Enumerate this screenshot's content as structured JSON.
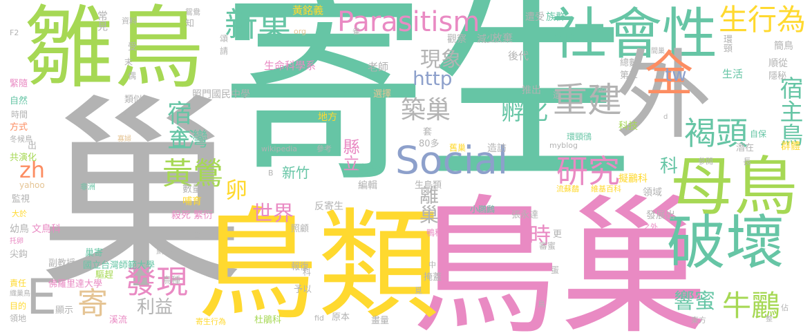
{
  "colors": {
    "green": "#66c5a5",
    "pink": "#e98ac3",
    "yellow": "#ffd92f",
    "lime": "#a6d854",
    "gray": "#b3b3b3",
    "orange": "#fc8d62",
    "blue": "#8da0cb",
    "tan": "#e5c494"
  },
  "words": [
    {
      "text": "寄生",
      "color": "green"
    },
    {
      "text": "巢",
      "color": "gray"
    },
    {
      "text": "鳥巢",
      "color": "pink"
    },
    {
      "text": "鳥類",
      "color": "yellow"
    },
    {
      "text": "雛鳥",
      "color": "lime"
    },
    {
      "text": "母鳥",
      "color": "lime"
    },
    {
      "text": "破壞",
      "color": "green"
    },
    {
      "text": "社會性",
      "color": "green"
    },
    {
      "text": "外",
      "color": "gray"
    },
    {
      "text": "全",
      "color": "orange"
    },
    {
      "text": "Parasitism",
      "color": "pink"
    },
    {
      "text": "Social",
      "color": "blue"
    },
    {
      "text": "新巢",
      "color": "green"
    },
    {
      "text": "生行為",
      "color": "yellow"
    },
    {
      "text": "重建",
      "color": "gray"
    },
    {
      "text": "褐頭",
      "color": "green"
    },
    {
      "text": "研究",
      "color": "pink"
    },
    {
      "text": "黃鶯",
      "color": "lime"
    },
    {
      "text": "發現",
      "color": "pink"
    },
    {
      "text": "宿主",
      "color": "green"
    },
    {
      "text": "台灣",
      "color": "green"
    },
    {
      "text": "孵化",
      "color": "green"
    },
    {
      "text": "築巢",
      "color": "gray"
    },
    {
      "text": "現象",
      "color": "gray"
    },
    {
      "text": "牛鸝",
      "color": "lime"
    },
    {
      "text": "寄",
      "color": "tan"
    },
    {
      "text": "E",
      "color": "gray"
    },
    {
      "text": "利益",
      "color": "gray"
    },
    {
      "text": "世界",
      "color": "pink"
    },
    {
      "text": "卵",
      "color": "yellow"
    },
    {
      "text": "時",
      "color": "pink"
    },
    {
      "text": "宿主鳥",
      "color": "green"
    },
    {
      "text": "響蜜",
      "color": "green"
    },
    {
      "text": "zh",
      "color": "orange"
    },
    {
      "text": "http",
      "color": "blue"
    },
    {
      "text": "tw",
      "color": "blue"
    },
    {
      "text": "離巢",
      "color": "gray"
    },
    {
      "text": "縣立",
      "color": "pink"
    },
    {
      "text": "科",
      "color": "green"
    },
    {
      "text": "新竹",
      "color": "green"
    },
    {
      "text": "雀形",
      "color": "green"
    },
    {
      "text": "照門國民中學",
      "color": "gray"
    },
    {
      "text": "生命科學系",
      "color": "pink"
    },
    {
      "text": "老師",
      "color": "gray"
    },
    {
      "text": "黃銘義",
      "color": "yellow"
    },
    {
      "text": "常見",
      "color": "gray"
    },
    {
      "text": "觀察",
      "color": "gray"
    },
    {
      "text": "減少",
      "color": "gray"
    },
    {
      "text": "放棄",
      "color": "gray"
    },
    {
      "text": "遭受",
      "color": "gray"
    },
    {
      "text": "族群",
      "color": "green"
    },
    {
      "text": "後代",
      "color": "gray"
    },
    {
      "text": "簡鳥",
      "color": "gray"
    },
    {
      "text": "環頸",
      "color": "gray"
    },
    {
      "text": "順從",
      "color": "gray"
    },
    {
      "text": "隱秘",
      "color": "gray"
    },
    {
      "text": "生活",
      "color": "green"
    },
    {
      "text": "總數",
      "color": "gray"
    },
    {
      "text": "第三",
      "color": "gray"
    },
    {
      "text": "推出",
      "color": "gray"
    },
    {
      "text": "選擇",
      "color": "tan"
    },
    {
      "text": "地方",
      "color": "yellow"
    },
    {
      "text": "科技",
      "color": "lime"
    },
    {
      "text": "自保",
      "color": "green"
    },
    {
      "text": "群體",
      "color": "yellow"
    },
    {
      "text": "環頸鴴",
      "color": "green"
    },
    {
      "text": "潛在",
      "color": "gray"
    },
    {
      "text": "參閱",
      "color": "gray"
    },
    {
      "text": "長",
      "color": "gray"
    },
    {
      "text": "擬鸝科",
      "color": "yellow"
    },
    {
      "text": "領域",
      "color": "gray"
    },
    {
      "text": "維基百科",
      "color": "yellow"
    },
    {
      "text": "流蘇鷸",
      "color": "yellow"
    },
    {
      "text": "myblog",
      "color": "gray"
    },
    {
      "text": "造訪",
      "color": "gray"
    },
    {
      "text": "舊巢",
      "color": "yellow"
    },
    {
      "text": "80多",
      "color": "gray"
    },
    {
      "text": "wikipedia",
      "color": "gray"
    },
    {
      "text": "參考",
      "color": "gray"
    },
    {
      "text": "套",
      "color": "gray"
    },
    {
      "text": "編輯",
      "color": "gray"
    },
    {
      "text": "生鳥類",
      "color": "gray"
    },
    {
      "text": "反寄生",
      "color": "gray"
    },
    {
      "text": "小鸊鷉",
      "color": "green"
    },
    {
      "text": "張永達",
      "color": "gray"
    },
    {
      "text": "發展出",
      "color": "gray"
    },
    {
      "text": "之外",
      "color": "pink"
    },
    {
      "text": "鴨科",
      "color": "pink"
    },
    {
      "text": "更",
      "color": "gray"
    },
    {
      "text": "審蜜",
      "color": "gray"
    },
    {
      "text": "報復",
      "color": "gray"
    },
    {
      "text": "照顧",
      "color": "gray"
    },
    {
      "text": "掩蓋",
      "color": "gray"
    },
    {
      "text": "予以",
      "color": "gray"
    },
    {
      "text": "原本",
      "color": "gray"
    },
    {
      "text": "畫量",
      "color": "gray"
    },
    {
      "text": "杜鵑科",
      "color": "lime"
    },
    {
      "text": "寄生行為",
      "color": "yellow"
    },
    {
      "text": "溪流",
      "color": "pink"
    },
    {
      "text": "顯示",
      "color": "gray"
    },
    {
      "text": "佛羅里達大學",
      "color": "pink"
    },
    {
      "text": "國立台灣師範大學",
      "color": "green"
    },
    {
      "text": "巢寄",
      "color": "green"
    },
    {
      "text": "鳥種",
      "color": "gray"
    },
    {
      "text": "副教授",
      "color": "gray"
    },
    {
      "text": "驅趕",
      "color": "lime"
    },
    {
      "text": "鮮少",
      "color": "gray"
    },
    {
      "text": "殺死",
      "color": "pink"
    },
    {
      "text": "繁衍",
      "color": "pink"
    },
    {
      "text": "數量",
      "color": "gray"
    },
    {
      "text": "哺育",
      "color": "yellow"
    },
    {
      "text": "文鳥科",
      "color": "pink"
    },
    {
      "text": "幼鳥",
      "color": "gray"
    },
    {
      "text": "大於",
      "color": "yellow"
    },
    {
      "text": "監視",
      "color": "gray"
    },
    {
      "text": "共演化",
      "color": "lime"
    },
    {
      "text": "方式",
      "color": "orange"
    },
    {
      "text": "自然",
      "color": "green"
    },
    {
      "text": "時間",
      "color": "gray"
    },
    {
      "text": "緊隨",
      "color": "pink"
    },
    {
      "text": "冬候鳥",
      "color": "gray"
    },
    {
      "text": "類似",
      "color": "gray"
    },
    {
      "text": "尖鈎",
      "color": "gray"
    },
    {
      "text": "責任",
      "color": "yellow"
    },
    {
      "text": "目的",
      "color": "yellow"
    },
    {
      "text": "領地",
      "color": "gray"
    },
    {
      "text": "織巢鳥",
      "color": "gray"
    },
    {
      "text": "托卵",
      "color": "pink"
    },
    {
      "text": "yahoo",
      "color": "tan"
    },
    {
      "text": "非洲",
      "color": "green"
    },
    {
      "text": "寡婦",
      "color": "tan"
    },
    {
      "text": "F2",
      "color": "gray"
    },
    {
      "text": "資料",
      "color": "gray"
    },
    {
      "text": "鴛鴦",
      "color": "gray"
    },
    {
      "text": "知",
      "color": "gray"
    },
    {
      "text": "頌",
      "color": "gray"
    },
    {
      "text": "請",
      "color": "gray"
    },
    {
      "text": "受",
      "color": "gray"
    },
    {
      "text": "偶",
      "color": "gray"
    },
    {
      "text": "末",
      "color": "gray"
    },
    {
      "text": "org",
      "color": "tan"
    },
    {
      "text": "雀",
      "color": "gray"
    },
    {
      "text": "green",
      "color": "green"
    },
    {
      "text": "間巢",
      "color": "gray"
    },
    {
      "text": "個體",
      "color": "gray"
    },
    {
      "text": "遭",
      "color": "gray"
    },
    {
      "text": "出",
      "color": "gray"
    },
    {
      "text": "A",
      "color": "gray"
    },
    {
      "text": "B",
      "color": "gray"
    },
    {
      "text": "fid",
      "color": "gray"
    },
    {
      "text": "中",
      "color": "gray"
    },
    {
      "text": "鳥",
      "color": "gray"
    },
    {
      "text": "佔",
      "color": "gray"
    },
    {
      "text": "東方",
      "color": "gray"
    },
    {
      "text": "蛋",
      "color": "gray"
    },
    {
      "text": "覓",
      "color": "gray"
    },
    {
      "text": "d",
      "color": "gray"
    },
    {
      "text": "F",
      "color": "gray"
    },
    {
      "text": "整",
      "color": "gray"
    },
    {
      "text": "科",
      "color": "gray"
    }
  ]
}
